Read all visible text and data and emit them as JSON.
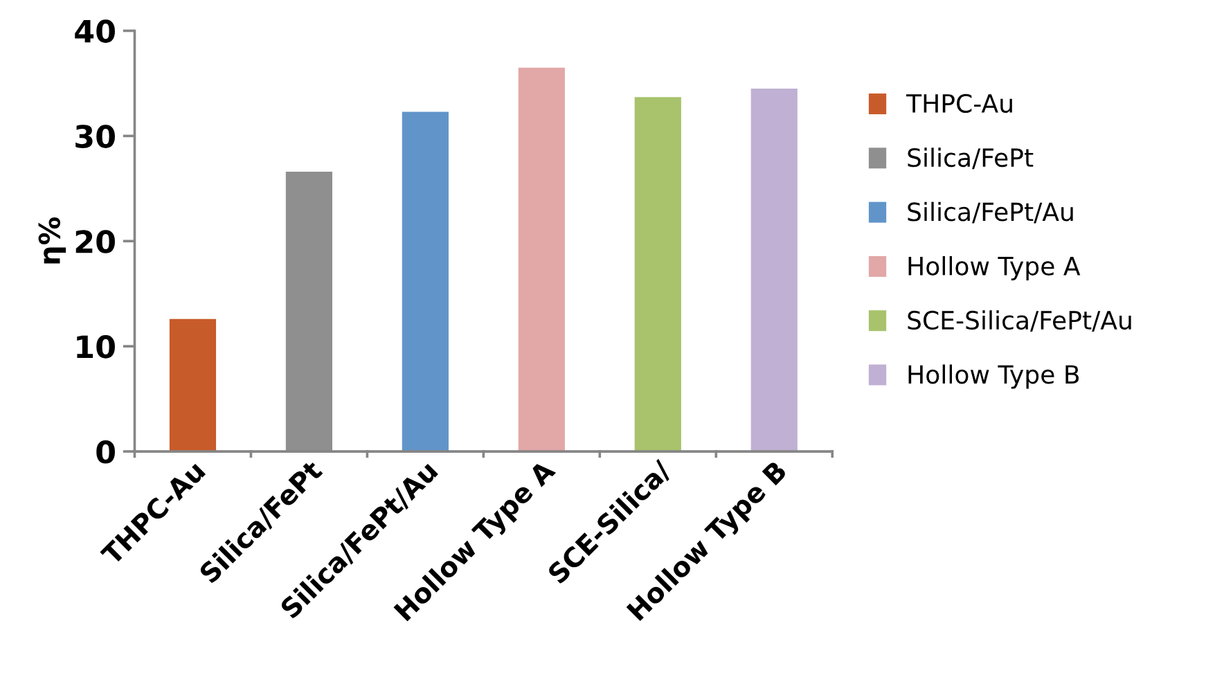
{
  "chart_data": {
    "type": "bar",
    "ylabel": "η%",
    "categories": [
      "THPC-Au",
      "Silica/FePt",
      "Silica/FePt/Au",
      "Hollow Type A",
      "SCE-Silica/",
      "Hollow Type B"
    ],
    "series": [
      {
        "name": "THPC-Au",
        "color": "#c85b2a",
        "values": [
          12.6,
          null,
          null,
          null,
          null,
          null
        ]
      },
      {
        "name": "Silica/FePt",
        "color": "#8f8f8f",
        "values": [
          null,
          26.6,
          null,
          null,
          null,
          null
        ]
      },
      {
        "name": "Silica/FePt/Au",
        "color": "#6195c9",
        "values": [
          null,
          null,
          32.3,
          null,
          null,
          null
        ]
      },
      {
        "name": "Hollow Type A",
        "color": "#e2a7a7",
        "values": [
          null,
          null,
          null,
          36.5,
          null,
          null
        ]
      },
      {
        "name": "SCE-Silica/FePt/Au",
        "color": "#a8c36c",
        "values": [
          null,
          null,
          null,
          null,
          33.7,
          null
        ]
      },
      {
        "name": "Hollow Type B",
        "color": "#c0b0d3",
        "values": [
          null,
          null,
          null,
          null,
          null,
          34.5
        ]
      }
    ],
    "ylim": [
      0,
      40
    ],
    "yticks": [
      0,
      10,
      20,
      30,
      40
    ],
    "grid": false,
    "legend": "right"
  }
}
